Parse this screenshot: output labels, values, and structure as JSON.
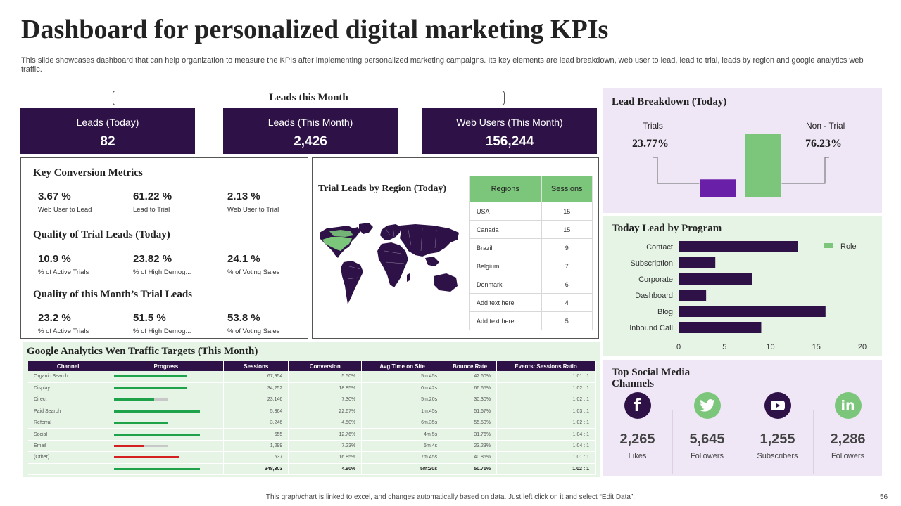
{
  "title": "Dashboard for personalized digital marketing KPIs",
  "subtitle": "This slide showcases dashboard that can help organization to measure the KPIs after implementing personalized marketing campaigns. Its key elements are lead breakdown, web user to lead, lead to trial, leads by region and google analytics web traffic.",
  "leads_banner": "Leads this Month",
  "kpis": [
    {
      "label": "Leads (Today)",
      "value": "82"
    },
    {
      "label": "Leads (This Month)",
      "value": "2,426"
    },
    {
      "label": "Web Users (This Month)",
      "value": "156,244"
    }
  ],
  "conversion": {
    "title": "Key Conversion Metrics",
    "metrics": [
      {
        "value": "3.67 %",
        "label": "Web User to Lead"
      },
      {
        "value": "61.22 %",
        "label": "Lead to Trial"
      },
      {
        "value": "2.13 %",
        "label": "Web User to Trial"
      }
    ],
    "quality_today_title": "Quality of Trial Leads (Today)",
    "quality_today": [
      {
        "value": "10.9 %",
        "label": "% of Active Trials"
      },
      {
        "value": "23.82 %",
        "label": "% of High Demog..."
      },
      {
        "value": "24.1 %",
        "label": "% of Voting Sales"
      }
    ],
    "quality_month_title": "Quality of this Month’s Trial Leads",
    "quality_month": [
      {
        "value": "23.2 %",
        "label": "% of Active Trials"
      },
      {
        "value": "51.5 %",
        "label": "% of High Demog..."
      },
      {
        "value": "53.8 %",
        "label": "% of Voting Sales"
      }
    ]
  },
  "region": {
    "title": "Trial Leads by Region (Today)",
    "headers": [
      "Regions",
      "Sessions"
    ],
    "rows": [
      {
        "region": "USA",
        "sessions": "15"
      },
      {
        "region": "Canada",
        "sessions": "15"
      },
      {
        "region": "Brazil",
        "sessions": "9"
      },
      {
        "region": "Belgium",
        "sessions": "7"
      },
      {
        "region": "Denmark",
        "sessions": "6"
      },
      {
        "region": "Add text here",
        "sessions": "4"
      },
      {
        "region": "Add text here",
        "sessions": "5"
      }
    ],
    "colors": {
      "highlight": "#7bc67b",
      "land": "#2e1247"
    }
  },
  "lead_breakdown": {
    "title": "Lead Breakdown (Today)",
    "trials_label": "Trials",
    "trials_value": "23.77%",
    "trials_fraction": 0.2377,
    "nontrial_label": "Non - Trial",
    "nontrial_value": "76.23%",
    "nontrial_fraction": 0.7623,
    "colors": {
      "trials": "#6a1fa8",
      "nontrial": "#7bc67b"
    }
  },
  "program": {
    "title": "Today Lead by Program",
    "legend": "Role"
  },
  "chart_data": {
    "type": "bar",
    "orientation": "horizontal",
    "categories": [
      "Contact",
      "Subscription",
      "Corporate",
      "Dashboard",
      "Blog",
      "Inbound Call"
    ],
    "series": [
      {
        "name": "Role",
        "values": [
          13,
          4,
          8,
          3,
          16,
          9
        ]
      }
    ],
    "title": "Today Lead by Program",
    "xlim": [
      0,
      20
    ],
    "xticks": [
      0,
      5,
      10,
      15,
      20
    ],
    "legend_position": "top-right",
    "grid": false,
    "colors": {
      "bar": "#2e1247",
      "legend": "#7bc67b"
    }
  },
  "analytics": {
    "title": "Google Analytics Wen Traffic Targets (This Month)",
    "headers": [
      "Channel",
      "Progress",
      "Sessions",
      "Conversion",
      "Avg Time on Site",
      "Bounce Rate",
      "Events: Sessions Ratio"
    ],
    "rows": [
      {
        "channel": "Organic Search",
        "progress": 1.35,
        "color": "#1fa34a",
        "sessions": "67,954",
        "conversion": "5.50%",
        "avg_time": "5m.45s",
        "bounce": "42.60%",
        "ratio": "1.01 : 1"
      },
      {
        "channel": "Display",
        "progress": 1.35,
        "color": "#1fa34a",
        "sessions": "34,252",
        "conversion": "18.85%",
        "avg_time": "0m.42s",
        "bounce": "66.65%",
        "ratio": "1.02 : 1"
      },
      {
        "channel": "Direct",
        "progress": 0.74,
        "color": "#1fa34a",
        "sessions": "23,146",
        "conversion": "7.30%",
        "avg_time": "5m.20s",
        "bounce": "30.30%",
        "ratio": "1.02 : 1"
      },
      {
        "channel": "Paid Search",
        "progress": 1.6,
        "color": "#1fa34a",
        "sessions": "5,364",
        "conversion": "22.67%",
        "avg_time": "1m.45s",
        "bounce": "51.67%",
        "ratio": "1.03 : 1"
      },
      {
        "channel": "Referral",
        "progress": 1.0,
        "color": "#1fa34a",
        "sessions": "3,246",
        "conversion": "4.50%",
        "avg_time": "6m.35s",
        "bounce": "55.50%",
        "ratio": "1.02 : 1"
      },
      {
        "channel": "Social",
        "progress": 1.6,
        "color": "#1fa34a",
        "sessions": "655",
        "conversion": "12.76%",
        "avg_time": "4m.5s",
        "bounce": "31.76%",
        "ratio": "1.04 : 1"
      },
      {
        "channel": "Email",
        "progress": 0.55,
        "color": "#d42020",
        "sessions": "1,299",
        "conversion": "7.23%",
        "avg_time": "5m.4s",
        "bounce": "23.23%",
        "ratio": "1.04 : 1"
      },
      {
        "channel": "(Other)",
        "progress": 1.22,
        "color": "#d42020",
        "sessions": "537",
        "conversion": "16.85%",
        "avg_time": "7m.45s",
        "bounce": "40.85%",
        "ratio": "1.01 : 1"
      }
    ],
    "total": {
      "progress": 1.6,
      "color": "#1fa34a",
      "sessions": "348,303",
      "conversion": "4.90%",
      "avg_time": "5m:20s",
      "bounce": "50.71%",
      "ratio": "1.02 : 1"
    }
  },
  "social": {
    "title": "Top Social Media Channels",
    "channels": [
      {
        "icon": "facebook-icon",
        "glyph": "f",
        "bg": "#2e1247",
        "value": "2,265",
        "label": "Likes"
      },
      {
        "icon": "twitter-icon",
        "glyph": "",
        "bg": "#7bc67b",
        "value": "5,645",
        "label": "Followers"
      },
      {
        "icon": "youtube-icon",
        "glyph": "",
        "bg": "#2e1247",
        "value": "1,255",
        "label": "Subscribers"
      },
      {
        "icon": "linkedin-icon",
        "glyph": "in",
        "bg": "#7bc67b",
        "value": "2,286",
        "label": "Followers"
      }
    ]
  },
  "footer": "This graph/chart is linked to excel, and changes automatically based on data. Just left click on it and select “Edit Data”.",
  "page_number": "56"
}
